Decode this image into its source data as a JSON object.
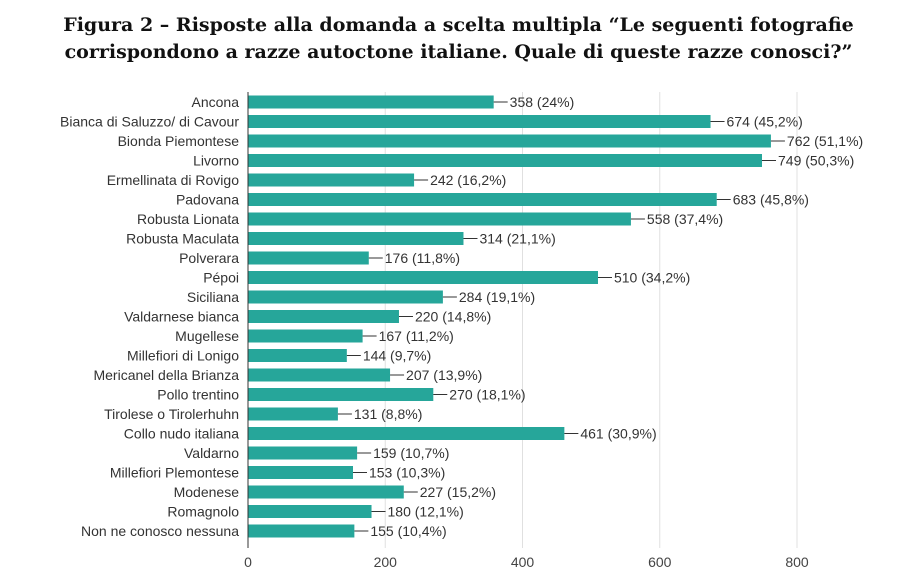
{
  "figure_title": {
    "line1": "Figura 2 – Risposte alla domanda a scelta multipla “Le seguenti fotografie",
    "line2": "corrispondono a razze autoctone italiane. Quale di queste razze conosci?”"
  },
  "colors": {
    "bar": "#26a69a",
    "grid": "#e0e0e0",
    "axis": "#333333",
    "text": "#333333"
  },
  "chart_data": {
    "type": "bar",
    "orientation": "horizontal",
    "categories": [
      "Ancona",
      "Bianca di Saluzzo/ di Cavour",
      "Bionda Piemontese",
      "Livorno",
      "Ermellinata di Rovigo",
      "Padovana",
      "Robusta Lionata",
      "Robusta Maculata",
      "Polverara",
      "Pépoi",
      "Siciliana",
      "Valdarnese bianca",
      "Mugellese",
      "Millefiori di Lonigo",
      "Mericanel della Brianza",
      "Pollo trentino",
      "Tirolese o Tirolerhuhn",
      "Collo nudo italiana",
      "Valdarno",
      "Millefiori Plemontese",
      "Modenese",
      "Romagnolo",
      "Non ne conosco nessuna"
    ],
    "values": [
      358,
      674,
      762,
      749,
      242,
      683,
      558,
      314,
      176,
      510,
      284,
      220,
      167,
      144,
      207,
      270,
      131,
      461,
      159,
      153,
      227,
      180,
      155
    ],
    "value_labels": [
      "358 (24%)",
      "674 (45,2%)",
      "762 (51,1%)",
      "749 (50,3%)",
      "242 (16,2%)",
      "683 (45,8%)",
      "558 (37,4%)",
      "314 (21,1%)",
      "176 (11,8%)",
      "510 (34,2%)",
      "284 (19,1%)",
      "220 (14,8%)",
      "167 (11,2%)",
      "144 (9,7%)",
      "207 (13,9%)",
      "270 (18,1%)",
      "131 (8,8%)",
      "461 (30,9%)",
      "159 (10,7%)",
      "153 (10,3%)",
      "227 (15,2%)",
      "180 (12,1%)",
      "155 (10,4%)"
    ],
    "xlim": [
      0,
      800
    ],
    "xticks": [
      "0",
      "200",
      "400",
      "600",
      "800"
    ],
    "grid": true,
    "xlabel": "",
    "ylabel": ""
  }
}
